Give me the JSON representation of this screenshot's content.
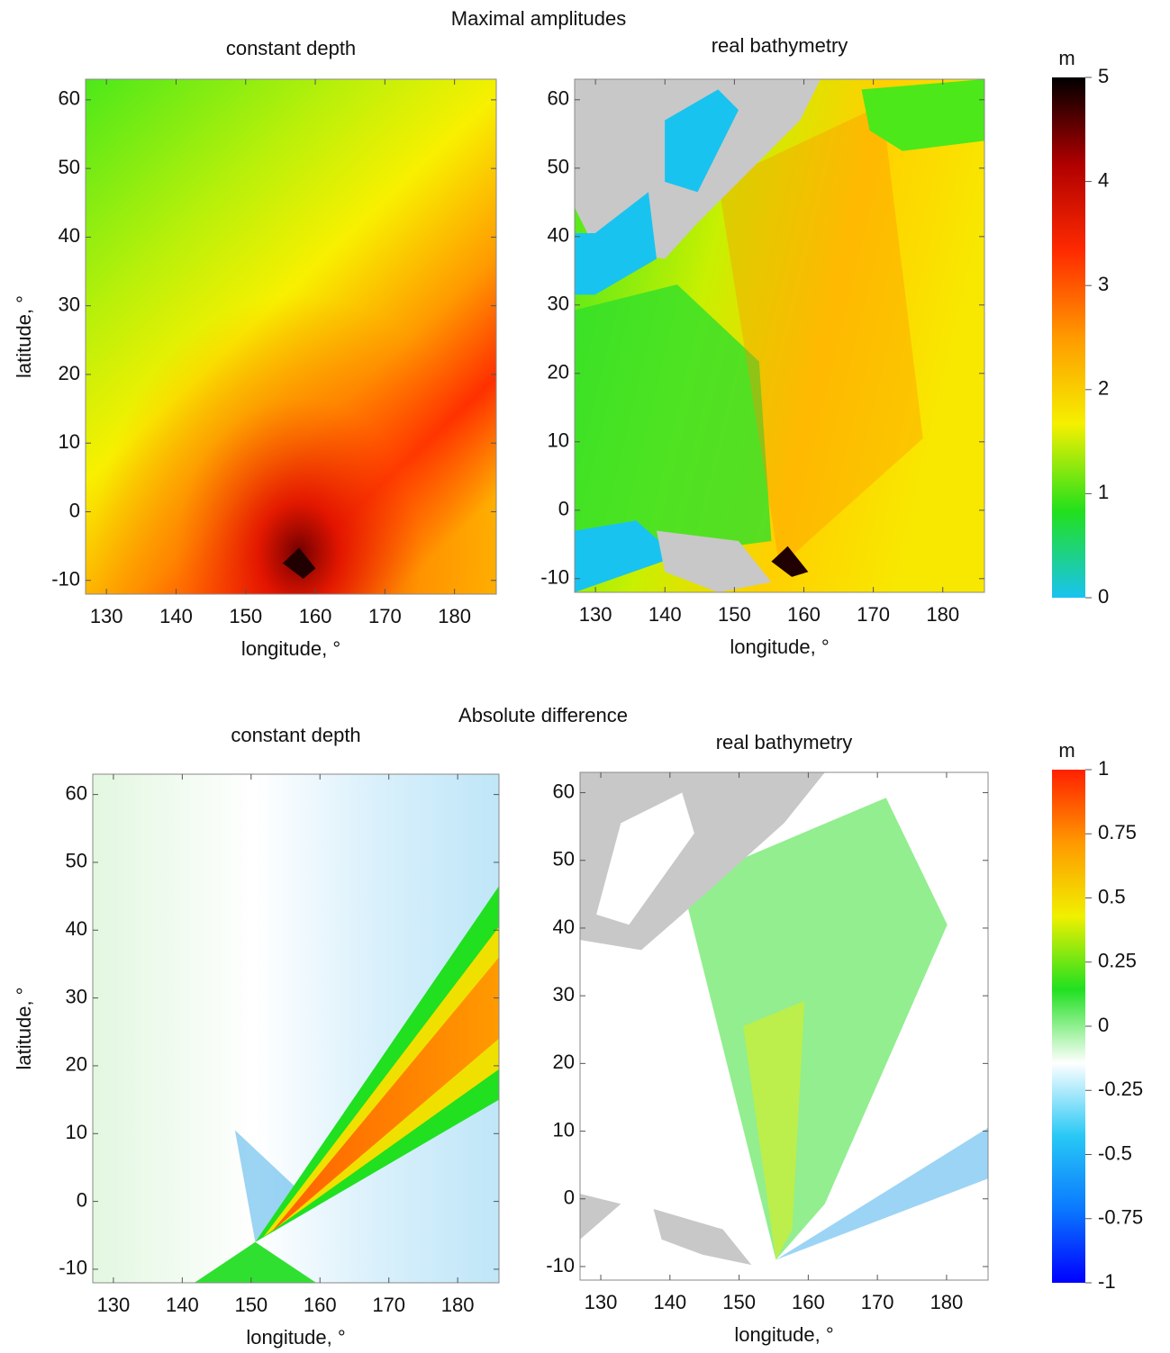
{
  "figure": {
    "rows": [
      {
        "title": "Maximal amplitudes",
        "colorbar": {
          "label": "m",
          "lim": [
            0,
            5
          ],
          "ticks": [
            0,
            1,
            2,
            3,
            4,
            5
          ],
          "colors": [
            "#19c3f0",
            "#22e01c",
            "#f5f000",
            "#ff9a00",
            "#ff2a00",
            "#b00000",
            "#000000"
          ]
        }
      },
      {
        "title": "Absolute difference",
        "colorbar": {
          "label": "m",
          "lim": [
            -1,
            1
          ],
          "ticks": [
            -1,
            -0.75,
            -0.5,
            -0.25,
            0,
            0.25,
            0.5,
            0.75,
            1
          ],
          "colors": [
            "#0000ff",
            "#0a78ff",
            "#28c8f5",
            "#ffffff",
            "#20e020",
            "#f0f000",
            "#ff9900",
            "#ff2000"
          ]
        }
      }
    ]
  },
  "chart_data": [
    {
      "type": "heatmap",
      "title": "constant depth",
      "xlabel": "longitude, °",
      "ylabel": "latitude, °",
      "xlim": [
        127,
        186
      ],
      "ylim": [
        -12,
        63
      ],
      "xticks": [
        130,
        140,
        150,
        160,
        170,
        180
      ],
      "yticks": [
        -10,
        0,
        10,
        20,
        30,
        40,
        50,
        60
      ]
    },
    {
      "type": "heatmap",
      "title": "real bathymetry",
      "xlabel": "longitude, °",
      "xlim": [
        127,
        186
      ],
      "ylim": [
        -12,
        63
      ],
      "xticks": [
        130,
        140,
        150,
        160,
        170,
        180
      ],
      "yticks": [
        -10,
        0,
        10,
        20,
        30,
        40,
        50,
        60
      ]
    },
    {
      "type": "heatmap",
      "title": "constant depth",
      "xlabel": "longitude, °",
      "ylabel": "latitude, °",
      "xlim": [
        127,
        186
      ],
      "ylim": [
        -12,
        63
      ],
      "xticks": [
        130,
        140,
        150,
        160,
        170,
        180
      ],
      "yticks": [
        -10,
        0,
        10,
        20,
        30,
        40,
        50,
        60
      ]
    },
    {
      "type": "heatmap",
      "title": "real bathymetry",
      "xlabel": "longitude, °",
      "xlim": [
        127,
        186
      ],
      "ylim": [
        -12,
        63
      ],
      "xticks": [
        130,
        140,
        150,
        160,
        170,
        180
      ],
      "yticks": [
        -10,
        0,
        10,
        20,
        30,
        40,
        50,
        60
      ]
    }
  ]
}
